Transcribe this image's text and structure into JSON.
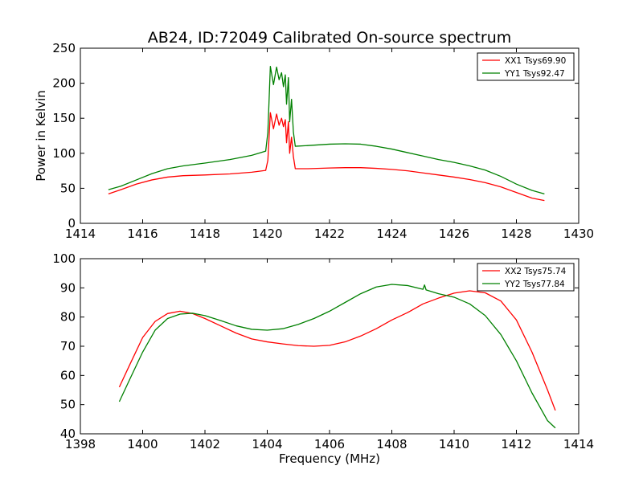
{
  "figure": {
    "title": "AB24, ID:72049 Calibrated On-source spectrum",
    "xlabel": "Frequency (MHz)"
  },
  "chart_data": [
    {
      "type": "line",
      "title": "AB24, ID:72049 Calibrated On-source spectrum",
      "xlabel": "",
      "ylabel": "Power in Kelvin",
      "xlim": [
        1414,
        1430
      ],
      "ylim": [
        0,
        250
      ],
      "xticks": [
        "1414",
        "1416",
        "1418",
        "1420",
        "1422",
        "1424",
        "1426",
        "1428",
        "1430"
      ],
      "yticks": [
        "0",
        "50",
        "100",
        "150",
        "200",
        "250"
      ],
      "grid": false,
      "legend": "top-right",
      "series": [
        {
          "name": "XX1 Tsys69.90",
          "color": "#ff0000",
          "points": [
            [
              1414.9,
              42
            ],
            [
              1415.3,
              48
            ],
            [
              1415.8,
              56
            ],
            [
              1416.3,
              62
            ],
            [
              1416.8,
              66
            ],
            [
              1417.3,
              68
            ],
            [
              1418.0,
              69
            ],
            [
              1418.8,
              70.5
            ],
            [
              1419.5,
              73
            ],
            [
              1419.95,
              75.5
            ],
            [
              1420.02,
              90
            ],
            [
              1420.1,
              158
            ],
            [
              1420.2,
              135
            ],
            [
              1420.3,
              156
            ],
            [
              1420.38,
              140
            ],
            [
              1420.46,
              150
            ],
            [
              1420.52,
              138
            ],
            [
              1420.58,
              148
            ],
            [
              1420.62,
              115
            ],
            [
              1420.68,
              145
            ],
            [
              1420.72,
              100
            ],
            [
              1420.78,
              123
            ],
            [
              1420.84,
              95
            ],
            [
              1420.9,
              78
            ],
            [
              1421.3,
              78
            ],
            [
              1422.0,
              79
            ],
            [
              1422.5,
              79.5
            ],
            [
              1423.0,
              79.5
            ],
            [
              1423.5,
              78.5
            ],
            [
              1424.0,
              77
            ],
            [
              1424.5,
              75
            ],
            [
              1425.0,
              72
            ],
            [
              1425.5,
              69
            ],
            [
              1426.0,
              66
            ],
            [
              1426.5,
              62.5
            ],
            [
              1427.0,
              58
            ],
            [
              1427.5,
              52
            ],
            [
              1428.0,
              44
            ],
            [
              1428.5,
              36
            ],
            [
              1428.9,
              32.5
            ]
          ]
        },
        {
          "name": "YY1 Tsys92.47",
          "color": "#008000",
          "points": [
            [
              1414.9,
              48
            ],
            [
              1415.3,
              53
            ],
            [
              1415.8,
              62
            ],
            [
              1416.3,
              71
            ],
            [
              1416.8,
              78
            ],
            [
              1417.3,
              82
            ],
            [
              1418.0,
              86
            ],
            [
              1418.8,
              91
            ],
            [
              1419.5,
              97
            ],
            [
              1419.95,
              103
            ],
            [
              1420.02,
              130
            ],
            [
              1420.1,
              224
            ],
            [
              1420.2,
              198
            ],
            [
              1420.3,
              223
            ],
            [
              1420.38,
              205
            ],
            [
              1420.46,
              215
            ],
            [
              1420.52,
              195
            ],
            [
              1420.58,
              212
            ],
            [
              1420.62,
              170
            ],
            [
              1420.68,
              208
            ],
            [
              1420.72,
              145
            ],
            [
              1420.78,
              177
            ],
            [
              1420.84,
              130
            ],
            [
              1420.9,
              110
            ],
            [
              1421.3,
              111
            ],
            [
              1422.0,
              113
            ],
            [
              1422.5,
              113.5
            ],
            [
              1423.0,
              113
            ],
            [
              1423.5,
              110
            ],
            [
              1424.0,
              106
            ],
            [
              1424.5,
              101
            ],
            [
              1425.0,
              96
            ],
            [
              1425.5,
              91
            ],
            [
              1426.0,
              87
            ],
            [
              1426.5,
              82
            ],
            [
              1427.0,
              76
            ],
            [
              1427.5,
              67
            ],
            [
              1428.0,
              56
            ],
            [
              1428.5,
              47
            ],
            [
              1428.9,
              42
            ]
          ]
        }
      ]
    },
    {
      "type": "line",
      "title": "",
      "xlabel": "Frequency (MHz)",
      "ylabel": "",
      "xlim": [
        1398,
        1414
      ],
      "ylim": [
        40,
        100
      ],
      "xticks": [
        "1398",
        "1400",
        "1402",
        "1404",
        "1406",
        "1408",
        "1410",
        "1412",
        "1414"
      ],
      "yticks": [
        "40",
        "50",
        "60",
        "70",
        "80",
        "90",
        "100"
      ],
      "grid": false,
      "legend": "top-right",
      "series": [
        {
          "name": "XX2 Tsys75.74",
          "color": "#ff0000",
          "points": [
            [
              1399.25,
              56
            ],
            [
              1399.6,
              64
            ],
            [
              1400.0,
              73
            ],
            [
              1400.4,
              78.5
            ],
            [
              1400.8,
              81.2
            ],
            [
              1401.2,
              82
            ],
            [
              1401.6,
              81.2
            ],
            [
              1402.0,
              79.5
            ],
            [
              1402.5,
              77
            ],
            [
              1403.0,
              74.5
            ],
            [
              1403.5,
              72.5
            ],
            [
              1404.0,
              71.5
            ],
            [
              1404.5,
              70.8
            ],
            [
              1405.0,
              70.2
            ],
            [
              1405.5,
              70.0
            ],
            [
              1406.0,
              70.3
            ],
            [
              1406.5,
              71.5
            ],
            [
              1407.0,
              73.5
            ],
            [
              1407.5,
              76
            ],
            [
              1408.0,
              79
            ],
            [
              1408.5,
              81.5
            ],
            [
              1409.0,
              84.5
            ],
            [
              1409.5,
              86.5
            ],
            [
              1410.0,
              88.2
            ],
            [
              1410.5,
              89.0
            ],
            [
              1411.0,
              88.3
            ],
            [
              1411.5,
              85.5
            ],
            [
              1412.0,
              79
            ],
            [
              1412.5,
              68
            ],
            [
              1413.0,
              55
            ],
            [
              1413.25,
              48
            ]
          ]
        },
        {
          "name": "YY2 Tsys77.84",
          "color": "#008000",
          "points": [
            [
              1399.25,
              51
            ],
            [
              1399.6,
              59
            ],
            [
              1400.0,
              68
            ],
            [
              1400.4,
              75.5
            ],
            [
              1400.8,
              79.5
            ],
            [
              1401.2,
              81
            ],
            [
              1401.6,
              81.3
            ],
            [
              1402.0,
              80.5
            ],
            [
              1402.5,
              78.8
            ],
            [
              1403.0,
              77
            ],
            [
              1403.5,
              75.8
            ],
            [
              1404.0,
              75.5
            ],
            [
              1404.5,
              76
            ],
            [
              1405.0,
              77.5
            ],
            [
              1405.5,
              79.5
            ],
            [
              1406.0,
              82
            ],
            [
              1406.5,
              85
            ],
            [
              1407.0,
              88
            ],
            [
              1407.5,
              90.3
            ],
            [
              1408.0,
              91.2
            ],
            [
              1408.5,
              90.8
            ],
            [
              1409.0,
              89.5
            ],
            [
              1409.05,
              91
            ],
            [
              1409.1,
              89.3
            ],
            [
              1409.5,
              88
            ],
            [
              1410.0,
              86.8
            ],
            [
              1410.5,
              84.5
            ],
            [
              1411.0,
              80.5
            ],
            [
              1411.5,
              74
            ],
            [
              1412.0,
              65
            ],
            [
              1412.5,
              54
            ],
            [
              1413.0,
              44.5
            ],
            [
              1413.25,
              42
            ]
          ]
        }
      ]
    }
  ]
}
